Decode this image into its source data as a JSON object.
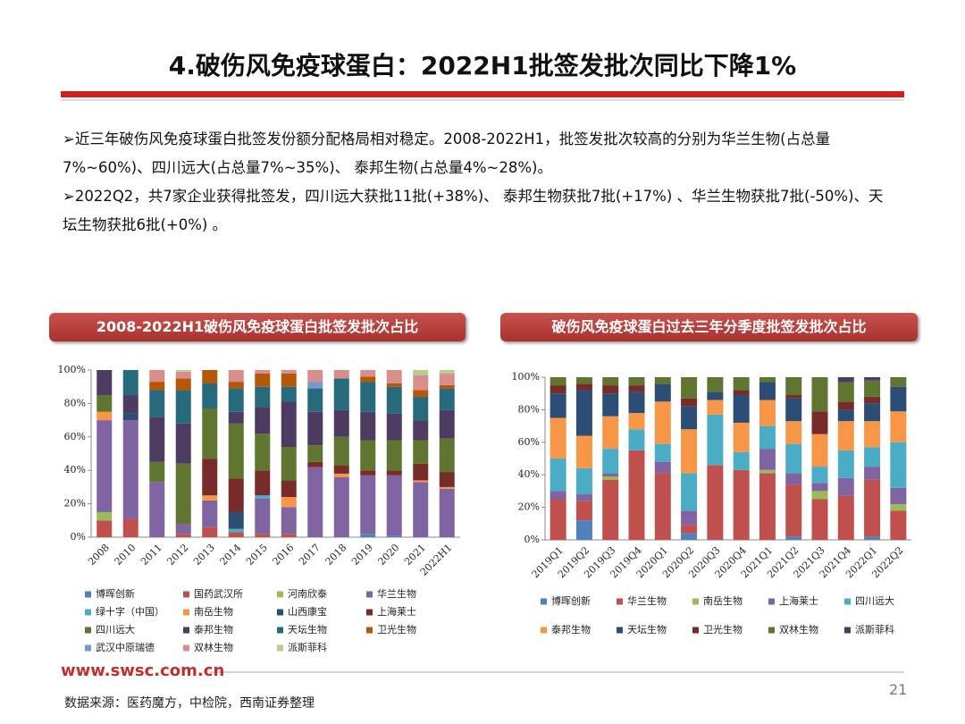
{
  "title": "4.破伤风免疫球蛋白：2022H1批签发批次同比下降1%",
  "bullets": [
    "➢近三年破伤风免疫球蛋白批签发份额分配格局相对稳定。2008-2022H1，批签发批次较高的分别为华兰生物(占总量7%~60%)、四川远大(占总量7%~35%)、 泰邦生物(占总量4%~28%)。",
    "➢2022Q2，共7家企业获得批签发，四川远大获批11批(+38%)、 泰邦生物获批7批(+17%) 、华兰生物获批7批(-50%)、天坛生物获批6批(+0%) 。"
  ],
  "footer": {
    "url": "www.swsc.com.cn",
    "source": "数据来源：医药魔方，中检院，西南证券整理",
    "page": "21"
  },
  "chart_data": [
    {
      "type": "stacked_bar",
      "title": "2008-2022H1破伤风免疫球蛋白批签发批次占比",
      "categories": [
        "2008",
        "2010",
        "2011",
        "2012",
        "2013",
        "2014",
        "2015",
        "2016",
        "2017",
        "2018",
        "2019",
        "2020",
        "2021",
        "2022H1"
      ],
      "ylim": [
        0,
        100
      ],
      "yticks": [
        {
          "value": 0,
          "label": "0%"
        },
        {
          "value": 20,
          "label": "20%"
        },
        {
          "value": 40,
          "label": "40%"
        },
        {
          "value": 60,
          "label": "60%"
        },
        {
          "value": 80,
          "label": "80%"
        },
        {
          "value": 100,
          "label": "100%"
        }
      ],
      "grid": false,
      "series": [
        {
          "name": "博晖创新",
          "color": "#4f81bd",
          "values": [
            0,
            0,
            0,
            0,
            0,
            0,
            0,
            0,
            0,
            0,
            2,
            1,
            0,
            0
          ]
        },
        {
          "name": "国药武汉所",
          "color": "#c0504d",
          "values": [
            10,
            11,
            0,
            2,
            6,
            3,
            2,
            2,
            0,
            0,
            0,
            0,
            0,
            0
          ]
        },
        {
          "name": "河南欣泰",
          "color": "#9bbb59",
          "values": [
            5,
            0,
            0,
            0,
            0,
            0,
            0,
            0,
            0,
            0,
            0,
            0,
            0,
            0
          ]
        },
        {
          "name": "华兰生物",
          "color": "#8064a2",
          "values": [
            55,
            59,
            33,
            6,
            16,
            0,
            21,
            16,
            42,
            36,
            35,
            36,
            33,
            29
          ]
        },
        {
          "name": "绿十字（中国）",
          "color": "#4bacc6",
          "values": [
            0,
            0,
            0,
            0,
            0,
            2,
            2,
            0,
            0,
            0,
            0,
            0,
            0,
            0
          ]
        },
        {
          "name": "南岳生物",
          "color": "#f79646",
          "values": [
            5,
            0,
            0,
            0,
            3,
            0,
            0,
            6,
            0,
            2,
            0,
            0,
            1,
            1
          ]
        },
        {
          "name": "山西康宝",
          "color": "#2c4d75",
          "values": [
            0,
            4,
            0,
            0,
            0,
            10,
            0,
            0,
            0,
            0,
            0,
            0,
            0,
            0
          ]
        },
        {
          "name": "上海莱士",
          "color": "#772c2a",
          "values": [
            0,
            0,
            0,
            0,
            22,
            20,
            15,
            10,
            3,
            5,
            3,
            3,
            10,
            9
          ]
        },
        {
          "name": "四川远大",
          "color": "#5f7530",
          "values": [
            10,
            0,
            12,
            36,
            30,
            33,
            22,
            20,
            10,
            17,
            18,
            18,
            14,
            20
          ]
        },
        {
          "name": "泰邦生物",
          "color": "#4d3b62",
          "values": [
            15,
            11,
            27,
            24,
            0,
            7,
            16,
            27,
            20,
            16,
            17,
            16,
            12,
            17
          ]
        },
        {
          "name": "天坛生物",
          "color": "#276a7c",
          "values": [
            0,
            15,
            16,
            20,
            15,
            14,
            12,
            9,
            14,
            19,
            18,
            16,
            14,
            13
          ]
        },
        {
          "name": "卫光生物",
          "color": "#b65708",
          "values": [
            0,
            0,
            5,
            7,
            8,
            4,
            8,
            8,
            0,
            0,
            3,
            2,
            4,
            2
          ]
        },
        {
          "name": "武汉中原瑞德",
          "color": "#729aca",
          "values": [
            0,
            0,
            0,
            0,
            0,
            0,
            0,
            0,
            4,
            0,
            0,
            0,
            0,
            0
          ]
        },
        {
          "name": "双林生物",
          "color": "#d98e8c",
          "values": [
            0,
            0,
            7,
            4,
            0,
            7,
            2,
            2,
            7,
            5,
            4,
            8,
            9,
            7
          ]
        },
        {
          "name": "派斯菲科",
          "color": "#b3cf8a",
          "values": [
            0,
            0,
            0,
            1,
            0,
            0,
            0,
            0,
            0,
            0,
            0,
            0,
            3,
            2
          ]
        }
      ]
    },
    {
      "type": "stacked_bar",
      "title": "破伤风免疫球蛋白过去三年分季度批签发批次占比",
      "categories": [
        "2019Q1",
        "2019Q2",
        "2019Q3",
        "2019Q4",
        "2020Q1",
        "2020Q2",
        "2020Q3",
        "2020Q4",
        "2021Q1",
        "2021Q2",
        "2021Q3",
        "2021Q4",
        "2022Q1",
        "2022Q2"
      ],
      "ylim": [
        0,
        100
      ],
      "yticks": [
        {
          "value": 0,
          "label": "0%"
        },
        {
          "value": 20,
          "label": "20%"
        },
        {
          "value": 40,
          "label": "40%"
        },
        {
          "value": 60,
          "label": "60%"
        },
        {
          "value": 80,
          "label": "80%"
        },
        {
          "value": 100,
          "label": "100%"
        }
      ],
      "grid": false,
      "series": [
        {
          "name": "博晖创新",
          "color": "#4f81bd",
          "values": [
            0,
            12,
            0,
            0,
            0,
            4,
            0,
            0,
            0,
            2,
            0,
            0,
            2,
            0
          ]
        },
        {
          "name": "华兰生物",
          "color": "#c0504d",
          "values": [
            25,
            12,
            37,
            55,
            41,
            5,
            46,
            43,
            41,
            32,
            25,
            27,
            35,
            18
          ]
        },
        {
          "name": "南岳生物",
          "color": "#9bbb59",
          "values": [
            0,
            0,
            2,
            0,
            0,
            0,
            0,
            0,
            2,
            0,
            5,
            0,
            0,
            4
          ]
        },
        {
          "name": "上海莱士",
          "color": "#8064a2",
          "values": [
            5,
            4,
            2,
            0,
            7,
            9,
            0,
            0,
            13,
            7,
            5,
            11,
            8,
            10
          ]
        },
        {
          "name": "四川远大",
          "color": "#4bacc6",
          "values": [
            20,
            16,
            15,
            13,
            11,
            23,
            31,
            11,
            14,
            18,
            10,
            17,
            12,
            28
          ]
        },
        {
          "name": "泰邦生物",
          "color": "#f79646",
          "values": [
            25,
            20,
            20,
            10,
            26,
            27,
            9,
            18,
            16,
            14,
            20,
            18,
            16,
            19
          ]
        },
        {
          "name": "天坛生物",
          "color": "#2c4d75",
          "values": [
            15,
            28,
            14,
            13,
            11,
            14,
            5,
            17,
            11,
            14,
            0,
            7,
            11,
            15
          ]
        },
        {
          "name": "卫光生物",
          "color": "#772c2a",
          "values": [
            5,
            4,
            5,
            4,
            0,
            5,
            0,
            3,
            0,
            2,
            14,
            5,
            4,
            0
          ]
        },
        {
          "name": "双林生物",
          "color": "#5f7530",
          "values": [
            5,
            4,
            5,
            5,
            4,
            13,
            9,
            8,
            3,
            11,
            21,
            12,
            10,
            6
          ]
        },
        {
          "name": "派斯菲科",
          "color": "#4d3b62",
          "values": [
            0,
            0,
            0,
            0,
            0,
            0,
            0,
            0,
            0,
            0,
            0,
            3,
            2,
            0
          ]
        }
      ]
    }
  ]
}
